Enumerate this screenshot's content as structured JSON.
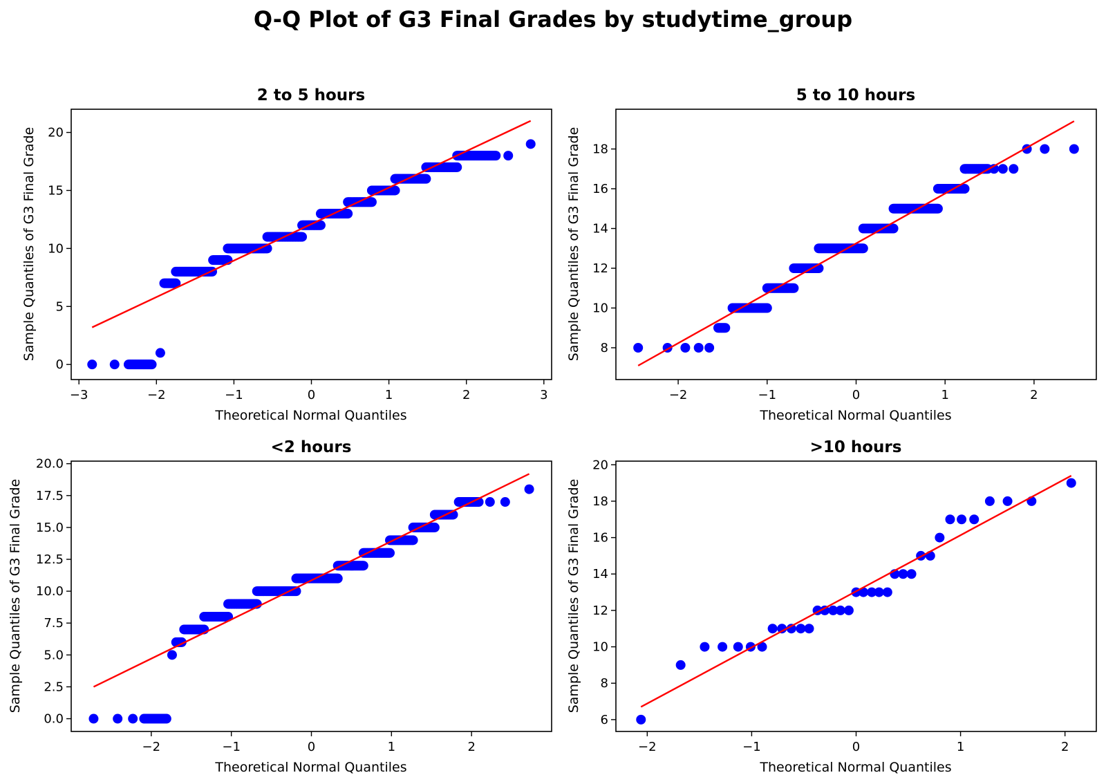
{
  "figure_title": "Q-Q Plot of G3 Final Grades by studytime_group",
  "colors": {
    "points": "#0000ff",
    "line": "#ff0000",
    "axes": "#000000",
    "background": "#ffffff"
  },
  "chart_data": [
    {
      "type": "scatter",
      "title": "2 to 5 hours",
      "xlabel": "Theoretical Normal Quantiles",
      "ylabel": "Sample Quantiles of G3 Final Grade",
      "xlim": [
        -3.1,
        3.1
      ],
      "ylim": [
        -1.3,
        22
      ],
      "xticks": [
        -3,
        -2,
        -1,
        0,
        1,
        2,
        3
      ],
      "yticks": [
        0,
        5,
        10,
        15,
        20
      ],
      "ytick_labels": [
        "0",
        "5",
        "10",
        "15",
        "20"
      ],
      "reference_line": {
        "x": [
          -2.83,
          2.83
        ],
        "y": [
          3.2,
          21
        ]
      },
      "runs": [
        {
          "x": [
            -2.83
          ],
          "y": 0
        },
        {
          "x": [
            -2.54
          ],
          "y": 0
        },
        {
          "x": [
            -2.36,
            -2.06
          ],
          "y": 0
        },
        {
          "x": [
            -1.95
          ],
          "y": 1
        },
        {
          "x": [
            -1.9,
            -1.75
          ],
          "y": 7
        },
        {
          "x": [
            -1.75,
            -1.28
          ],
          "y": 8
        },
        {
          "x": [
            -1.27,
            -1.08
          ],
          "y": 9
        },
        {
          "x": [
            -1.08,
            -0.57
          ],
          "y": 10
        },
        {
          "x": [
            -0.57,
            -0.12
          ],
          "y": 11
        },
        {
          "x": [
            -0.12,
            0.12
          ],
          "y": 12
        },
        {
          "x": [
            0.12,
            0.47
          ],
          "y": 13
        },
        {
          "x": [
            0.47,
            0.78
          ],
          "y": 14
        },
        {
          "x": [
            0.78,
            1.08
          ],
          "y": 15
        },
        {
          "x": [
            1.08,
            1.48
          ],
          "y": 16
        },
        {
          "x": [
            1.48,
            1.88
          ],
          "y": 17
        },
        {
          "x": [
            1.88,
            2.38
          ],
          "y": 18
        },
        {
          "x": [
            2.54
          ],
          "y": 18
        },
        {
          "x": [
            2.83
          ],
          "y": 19
        }
      ]
    },
    {
      "type": "scatter",
      "title": "5 to 10 hours",
      "xlabel": "Theoretical Normal Quantiles",
      "ylabel": "Sample Quantiles of G3 Final Grade",
      "xlim": [
        -2.7,
        2.7
      ],
      "ylim": [
        6.4,
        20.0
      ],
      "xticks": [
        -2,
        -1,
        0,
        1,
        2
      ],
      "yticks": [
        8,
        10,
        12,
        14,
        16,
        18
      ],
      "ytick_labels": [
        "8",
        "10",
        "12",
        "14",
        "16",
        "18"
      ],
      "reference_line": {
        "x": [
          -2.45,
          2.45
        ],
        "y": [
          7.1,
          19.4
        ]
      },
      "runs": [
        {
          "x": [
            -2.45
          ],
          "y": 8
        },
        {
          "x": [
            -2.12
          ],
          "y": 8
        },
        {
          "x": [
            -1.92
          ],
          "y": 8
        },
        {
          "x": [
            -1.77
          ],
          "y": 8
        },
        {
          "x": [
            -1.65
          ],
          "y": 8
        },
        {
          "x": [
            -1.55,
            -1.47
          ],
          "y": 9
        },
        {
          "x": [
            -1.39,
            -1.0
          ],
          "y": 10
        },
        {
          "x": [
            -1.0,
            -0.7
          ],
          "y": 11
        },
        {
          "x": [
            -0.7,
            -0.42
          ],
          "y": 12
        },
        {
          "x": [
            -0.42,
            0.08
          ],
          "y": 13
        },
        {
          "x": [
            0.08,
            0.42
          ],
          "y": 14
        },
        {
          "x": [
            0.42,
            0.92
          ],
          "y": 15
        },
        {
          "x": [
            0.92,
            1.22
          ],
          "y": 16
        },
        {
          "x": [
            1.22,
            1.48
          ],
          "y": 17
        },
        {
          "x": [
            1.55
          ],
          "y": 17
        },
        {
          "x": [
            1.65
          ],
          "y": 17
        },
        {
          "x": [
            1.77
          ],
          "y": 17
        },
        {
          "x": [
            1.92
          ],
          "y": 18
        },
        {
          "x": [
            2.12
          ],
          "y": 18
        },
        {
          "x": [
            2.45
          ],
          "y": 18
        }
      ]
    },
    {
      "type": "scatter",
      "title": "<2 hours",
      "xlabel": "Theoretical Normal Quantiles",
      "ylabel": "Sample Quantiles of G3 Final Grade",
      "xlim": [
        -3.0,
        3.0
      ],
      "ylim": [
        -1.0,
        20.2
      ],
      "xticks": [
        -2,
        -1,
        0,
        1,
        2
      ],
      "yticks": [
        0,
        2.5,
        5,
        7.5,
        10,
        12.5,
        15,
        17.5,
        20
      ],
      "ytick_labels": [
        "0.0",
        "2.5",
        "5.0",
        "7.5",
        "10.0",
        "12.5",
        "15.0",
        "17.5",
        "20.0"
      ],
      "reference_line": {
        "x": [
          -2.72,
          2.72
        ],
        "y": [
          2.5,
          19.2
        ]
      },
      "runs": [
        {
          "x": [
            -2.72
          ],
          "y": 0
        },
        {
          "x": [
            -2.42
          ],
          "y": 0
        },
        {
          "x": [
            -2.23
          ],
          "y": 0
        },
        {
          "x": [
            -2.09,
            -1.81
          ],
          "y": 0
        },
        {
          "x": [
            -1.74
          ],
          "y": 5
        },
        {
          "x": [
            -1.69,
            -1.62
          ],
          "y": 6
        },
        {
          "x": [
            -1.59,
            -1.34
          ],
          "y": 7
        },
        {
          "x": [
            -1.34,
            -1.04
          ],
          "y": 8
        },
        {
          "x": [
            -1.04,
            -0.68
          ],
          "y": 9
        },
        {
          "x": [
            -0.68,
            -0.19
          ],
          "y": 10
        },
        {
          "x": [
            -0.19,
            0.33
          ],
          "y": 11
        },
        {
          "x": [
            0.33,
            0.65
          ],
          "y": 12
        },
        {
          "x": [
            0.65,
            0.98
          ],
          "y": 13
        },
        {
          "x": [
            0.98,
            1.27
          ],
          "y": 14
        },
        {
          "x": [
            1.27,
            1.54
          ],
          "y": 15
        },
        {
          "x": [
            1.54,
            1.77
          ],
          "y": 16
        },
        {
          "x": [
            1.84,
            2.09
          ],
          "y": 17
        },
        {
          "x": [
            2.23
          ],
          "y": 17
        },
        {
          "x": [
            2.42
          ],
          "y": 17
        },
        {
          "x": [
            2.72
          ],
          "y": 18
        }
      ]
    },
    {
      "type": "scatter",
      "title": ">10 hours",
      "xlabel": "Theoretical Normal Quantiles",
      "ylabel": "Sample Quantiles of G3 Final Grade",
      "xlim": [
        -2.3,
        2.3
      ],
      "ylim": [
        5.35,
        20.2
      ],
      "xticks": [
        -2,
        -1,
        0,
        1,
        2
      ],
      "yticks": [
        6,
        8,
        10,
        12,
        14,
        16,
        18,
        20
      ],
      "ytick_labels": [
        "6",
        "8",
        "10",
        "12",
        "14",
        "16",
        "18",
        "20"
      ],
      "reference_line": {
        "x": [
          -2.06,
          2.06
        ],
        "y": [
          6.7,
          19.4
        ]
      },
      "points": [
        [
          -2.06,
          6
        ],
        [
          -1.68,
          9
        ],
        [
          -1.45,
          10
        ],
        [
          -1.28,
          10
        ],
        [
          -1.13,
          10
        ],
        [
          -1.01,
          10
        ],
        [
          -0.9,
          10
        ],
        [
          -0.8,
          11
        ],
        [
          -0.71,
          11
        ],
        [
          -0.62,
          11
        ],
        [
          -0.53,
          11
        ],
        [
          -0.45,
          11
        ],
        [
          -0.37,
          12
        ],
        [
          -0.3,
          12
        ],
        [
          -0.22,
          12
        ],
        [
          -0.15,
          12
        ],
        [
          -0.07,
          12
        ],
        [
          0.0,
          13
        ],
        [
          0.07,
          13
        ],
        [
          0.15,
          13
        ],
        [
          0.22,
          13
        ],
        [
          0.3,
          13
        ],
        [
          0.37,
          14
        ],
        [
          0.45,
          14
        ],
        [
          0.53,
          14
        ],
        [
          0.62,
          15
        ],
        [
          0.71,
          15
        ],
        [
          0.8,
          16
        ],
        [
          0.9,
          17
        ],
        [
          1.01,
          17
        ],
        [
          1.13,
          17
        ],
        [
          1.28,
          18
        ],
        [
          1.45,
          18
        ],
        [
          1.68,
          18
        ],
        [
          2.06,
          19
        ]
      ]
    }
  ]
}
